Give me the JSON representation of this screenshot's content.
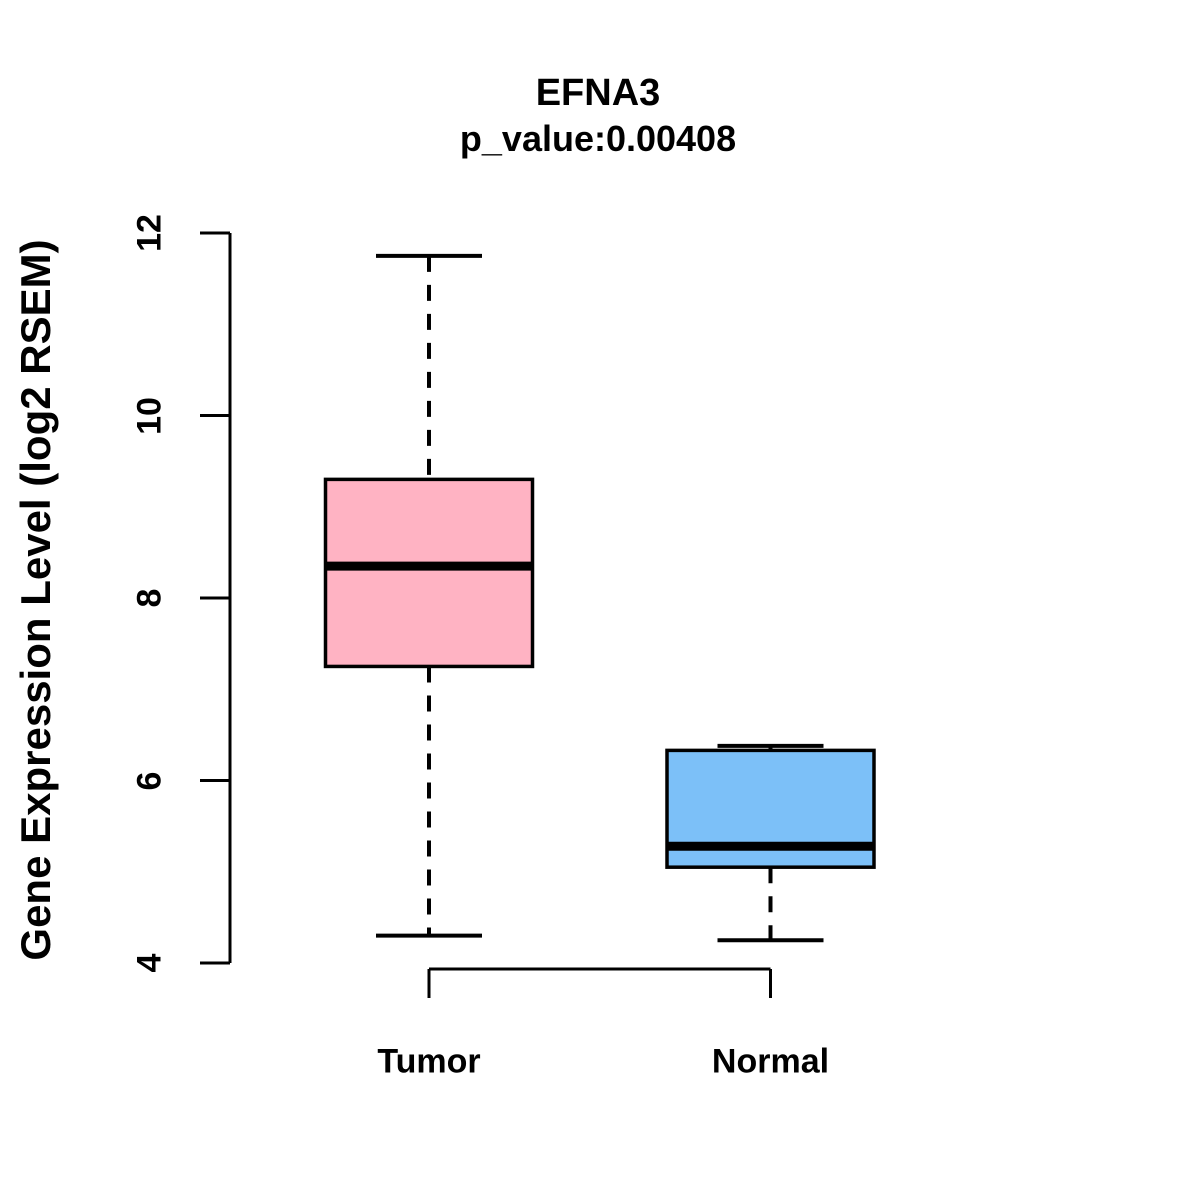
{
  "chart_data": {
    "type": "boxplot",
    "title": "EFNA3",
    "subtitle": "p_value:0.00408",
    "ylabel": "Gene Expression Level (log2 RSEM)",
    "xlabel": "",
    "categories": [
      "Tumor",
      "Normal"
    ],
    "groups": [
      {
        "name": "Tumor",
        "color": "#FFB3C3",
        "whisker_low": 4.3,
        "q1": 7.25,
        "median": 8.35,
        "q3": 9.3,
        "whisker_high": 11.75
      },
      {
        "name": "Normal",
        "color": "#7CC0F8",
        "whisker_low": 4.25,
        "q1": 5.05,
        "median": 5.28,
        "q3": 6.33,
        "whisker_high": 6.38
      }
    ],
    "ylim": [
      4,
      12
    ],
    "yticks": [
      4,
      6,
      8,
      10,
      12
    ],
    "grid": false,
    "legend": "none",
    "stroke_color": "#000000",
    "background": "#FFFFFF"
  }
}
